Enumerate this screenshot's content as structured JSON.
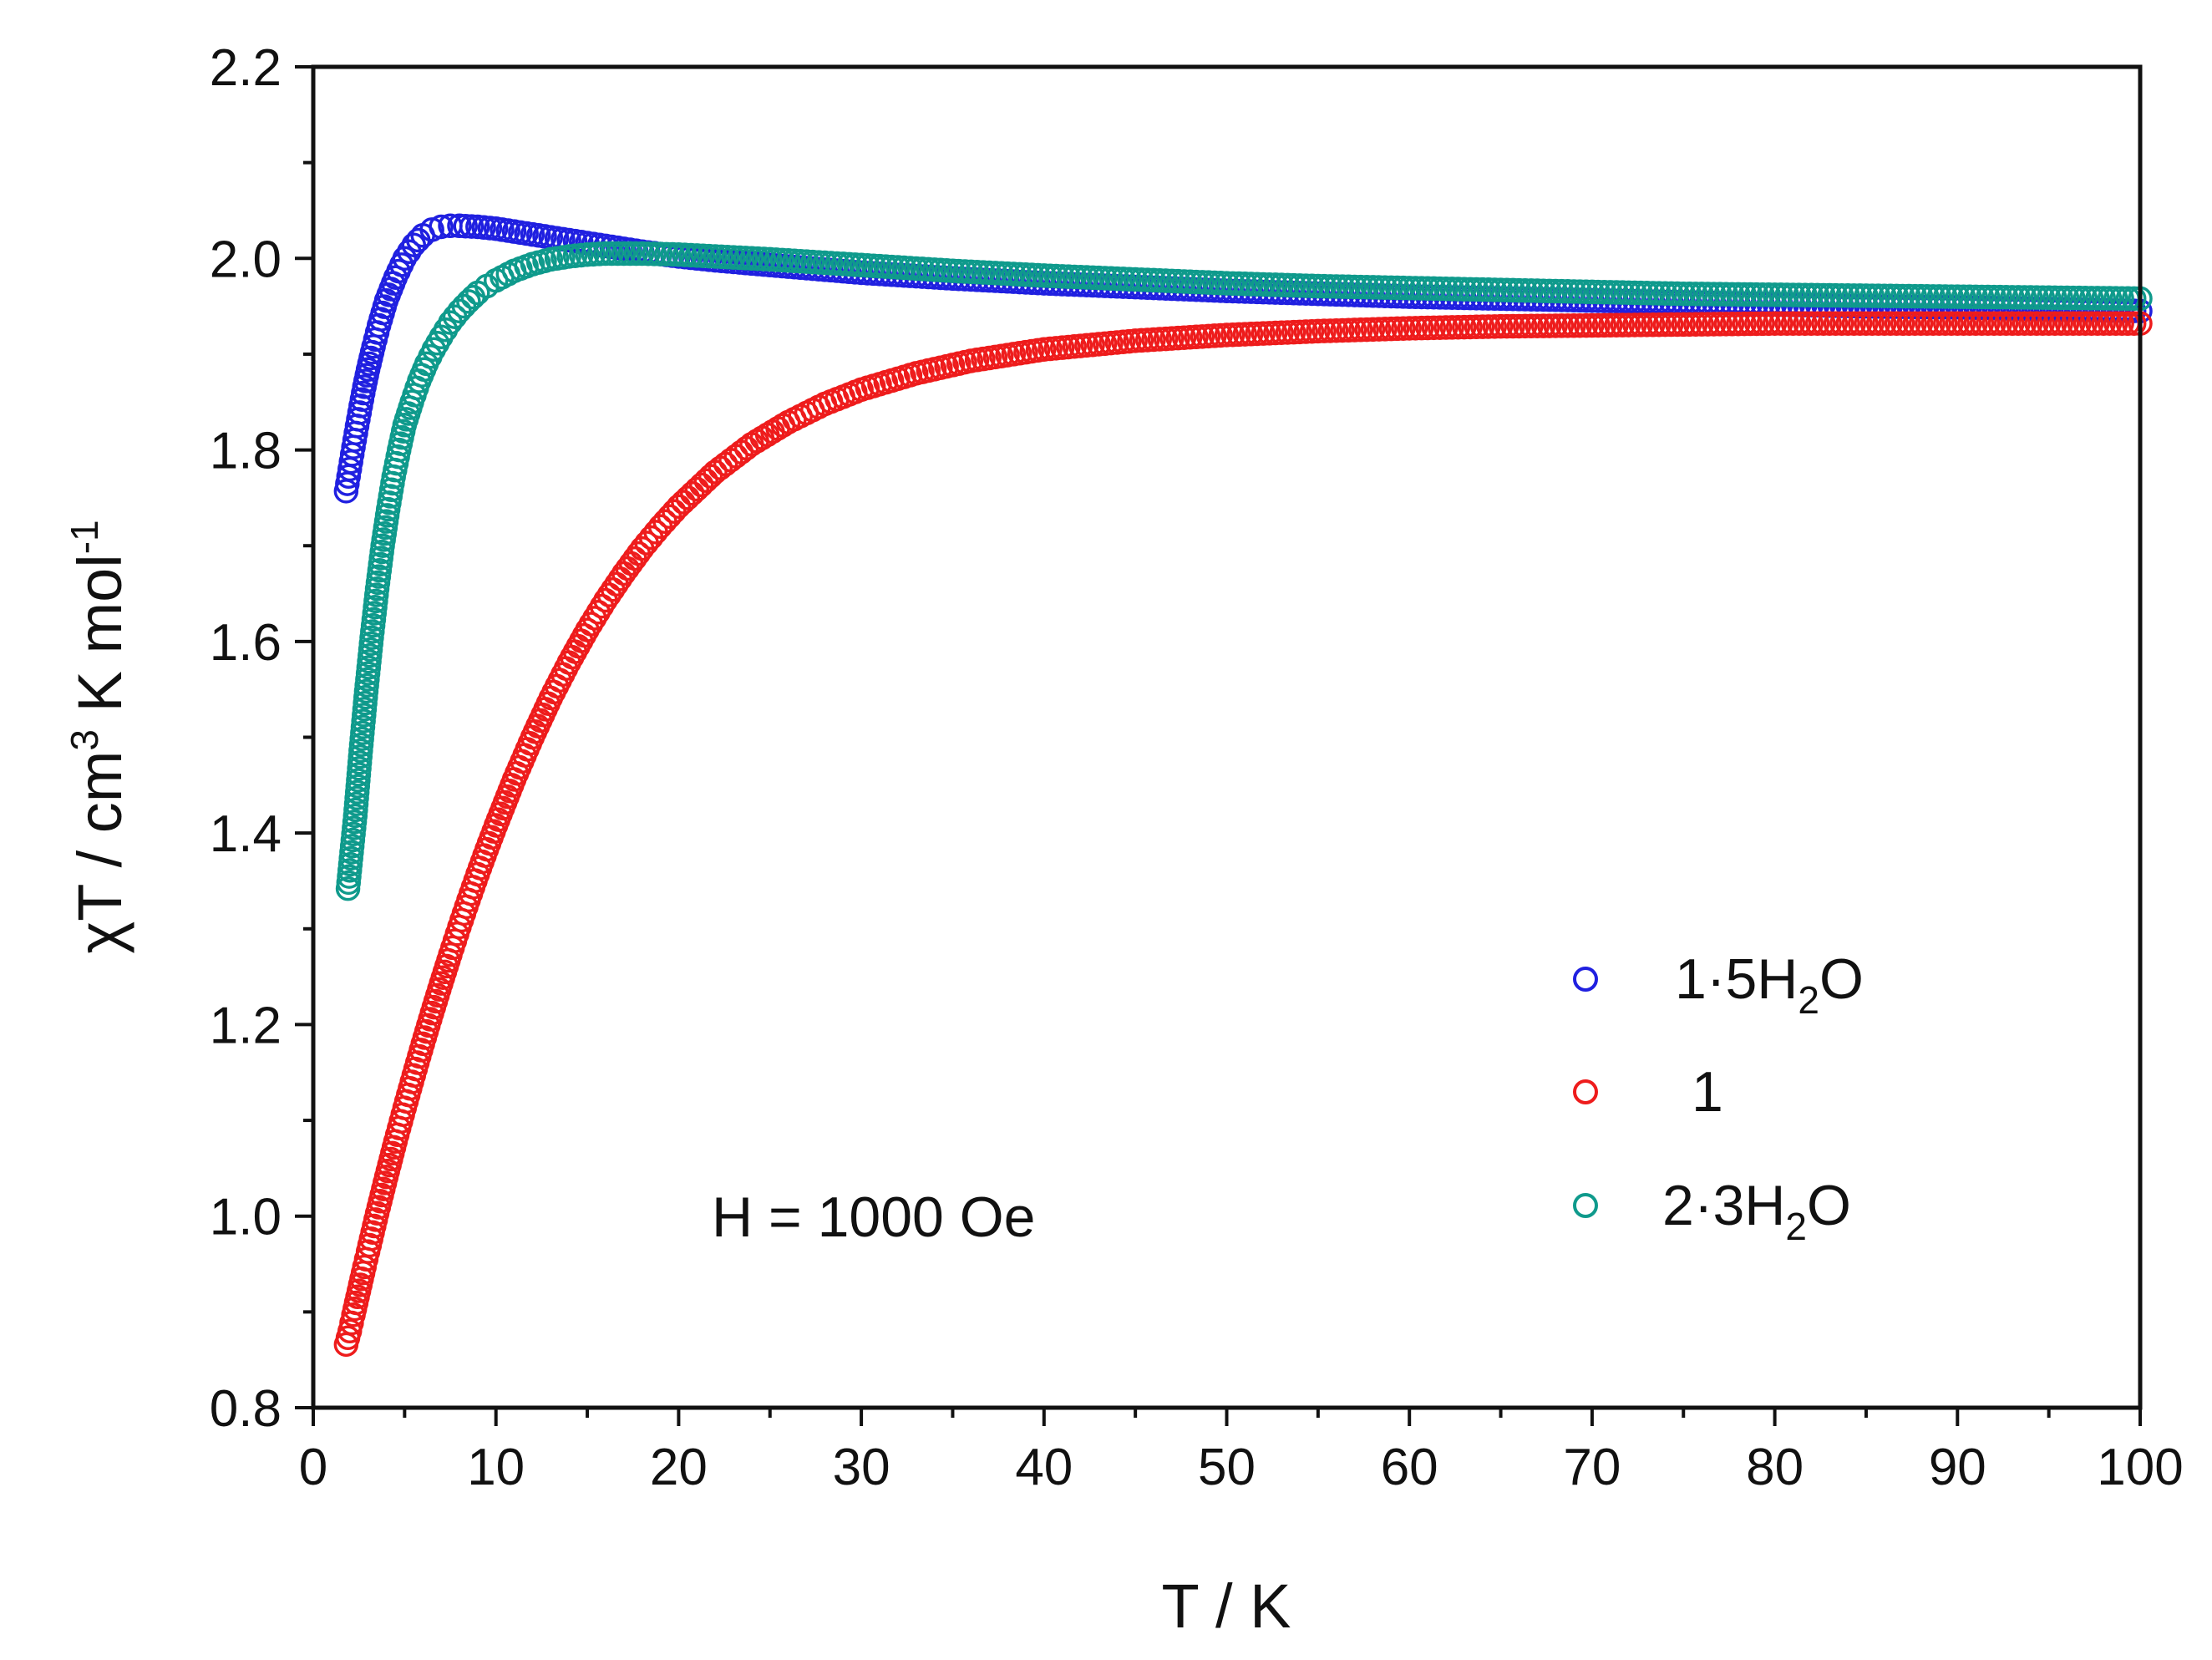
{
  "chart_data": {
    "type": "scatter",
    "title": "",
    "xlabel": "T / K",
    "ylabel": {
      "chi": "χ",
      "t": "T / cm",
      "exp3": "3",
      "k_mol": " K mol",
      "exp_neg1": "-1"
    },
    "xlim": [
      0,
      100
    ],
    "ylim": [
      0.8,
      2.2
    ],
    "x_ticks": [
      "0",
      "10",
      "20",
      "30",
      "40",
      "50",
      "60",
      "70",
      "80",
      "90",
      "100"
    ],
    "y_ticks": [
      "0.8",
      "1.0",
      "1.2",
      "1.4",
      "1.6",
      "1.8",
      "2.0",
      "2.2"
    ],
    "grid": false,
    "legend_position": "bottom-right",
    "annotation": "H = 1000 Oe",
    "series": [
      {
        "name": "1·5H2O",
        "label_parts": {
          "main": "1·5H",
          "sub": "2",
          "tail": "O"
        },
        "color": "#2020e0",
        "marker": "open-circle",
        "points": [
          [
            1.8,
            1.757
          ],
          [
            2.0,
            1.78
          ],
          [
            2.2,
            1.803
          ],
          [
            2.4,
            1.825
          ],
          [
            2.6,
            1.846
          ],
          [
            2.8,
            1.866
          ],
          [
            3.0,
            1.884
          ],
          [
            3.3,
            1.908
          ],
          [
            3.6,
            1.93
          ],
          [
            4.0,
            1.956
          ],
          [
            4.5,
            1.98
          ],
          [
            5.0,
            2.0
          ],
          [
            5.5,
            2.014
          ],
          [
            6.0,
            2.024
          ],
          [
            6.5,
            2.03
          ],
          [
            7.0,
            2.033
          ],
          [
            7.5,
            2.034
          ],
          [
            8.0,
            2.034
          ],
          [
            9.0,
            2.033
          ],
          [
            10.0,
            2.031
          ],
          [
            11.0,
            2.028
          ],
          [
            12.0,
            2.025
          ],
          [
            13.0,
            2.022
          ],
          [
            14.0,
            2.019
          ],
          [
            15.0,
            2.016
          ],
          [
            16.0,
            2.013
          ],
          [
            18.0,
            2.007
          ],
          [
            20.0,
            2.002
          ],
          [
            22.0,
            1.998
          ],
          [
            25.0,
            1.993
          ],
          [
            30.0,
            1.985
          ],
          [
            35.0,
            1.979
          ],
          [
            40.0,
            1.974
          ],
          [
            45.0,
            1.97
          ],
          [
            50.0,
            1.966
          ],
          [
            55.0,
            1.963
          ],
          [
            60.0,
            1.96
          ],
          [
            65.0,
            1.958
          ],
          [
            70.0,
            1.956
          ],
          [
            75.0,
            1.954
          ],
          [
            80.0,
            1.952
          ],
          [
            85.0,
            1.95
          ],
          [
            90.0,
            1.949
          ],
          [
            95.0,
            1.947
          ],
          [
            100.0,
            1.945
          ]
        ]
      },
      {
        "name": "1",
        "label_parts": {
          "main": "1",
          "sub": "",
          "tail": ""
        },
        "color": "#ee1c1c",
        "marker": "open-circle",
        "points": [
          [
            1.8,
            0.866
          ],
          [
            2.0,
            0.88
          ],
          [
            2.2,
            0.897
          ],
          [
            2.5,
            0.922
          ],
          [
            2.8,
            0.947
          ],
          [
            3.0,
            0.963
          ],
          [
            3.5,
            1.003
          ],
          [
            4.0,
            1.041
          ],
          [
            4.5,
            1.078
          ],
          [
            5.0,
            1.113
          ],
          [
            5.5,
            1.147
          ],
          [
            6.0,
            1.18
          ],
          [
            6.5,
            1.212
          ],
          [
            7.0,
            1.243
          ],
          [
            7.5,
            1.273
          ],
          [
            8.0,
            1.302
          ],
          [
            8.5,
            1.33
          ],
          [
            9.0,
            1.357
          ],
          [
            9.5,
            1.383
          ],
          [
            10.0,
            1.408
          ],
          [
            11.0,
            1.456
          ],
          [
            12.0,
            1.5
          ],
          [
            13.0,
            1.541
          ],
          [
            14.0,
            1.578
          ],
          [
            15.0,
            1.612
          ],
          [
            16.0,
            1.643
          ],
          [
            17.0,
            1.671
          ],
          [
            18.0,
            1.697
          ],
          [
            19.0,
            1.72
          ],
          [
            20.0,
            1.741
          ],
          [
            22.0,
            1.777
          ],
          [
            24.0,
            1.806
          ],
          [
            26.0,
            1.829
          ],
          [
            28.0,
            1.848
          ],
          [
            30.0,
            1.863
          ],
          [
            33.0,
            1.88
          ],
          [
            36.0,
            1.893
          ],
          [
            40.0,
            1.905
          ],
          [
            45.0,
            1.914
          ],
          [
            50.0,
            1.92
          ],
          [
            55.0,
            1.924
          ],
          [
            60.0,
            1.927
          ],
          [
            65.0,
            1.929
          ],
          [
            70.0,
            1.93
          ],
          [
            75.0,
            1.931
          ],
          [
            80.0,
            1.932
          ],
          [
            85.0,
            1.932
          ],
          [
            90.0,
            1.932
          ],
          [
            95.0,
            1.932
          ],
          [
            100.0,
            1.932
          ]
        ]
      },
      {
        "name": "2·3H2O",
        "label_parts": {
          "main": "2·3H",
          "sub": "2",
          "tail": "O"
        },
        "color": "#0f9a8c",
        "marker": "open-circle",
        "points": [
          [
            1.9,
            1.342
          ],
          [
            2.3,
            1.418
          ],
          [
            2.6,
            1.486
          ],
          [
            2.9,
            1.548
          ],
          [
            3.2,
            1.604
          ],
          [
            3.5,
            1.655
          ],
          [
            3.8,
            1.7
          ],
          [
            4.1,
            1.738
          ],
          [
            4.4,
            1.772
          ],
          [
            4.7,
            1.8
          ],
          [
            5.0,
            1.826
          ],
          [
            5.4,
            1.85
          ],
          [
            5.8,
            1.872
          ],
          [
            6.2,
            1.89
          ],
          [
            6.6,
            1.905
          ],
          [
            7.0,
            1.918
          ],
          [
            7.5,
            1.933
          ],
          [
            8.0,
            1.945
          ],
          [
            8.5,
            1.955
          ],
          [
            9.0,
            1.964
          ],
          [
            9.5,
            1.971
          ],
          [
            10.0,
            1.977
          ],
          [
            11.0,
            1.987
          ],
          [
            12.0,
            1.994
          ],
          [
            13.0,
            1.999
          ],
          [
            14.0,
            2.002
          ],
          [
            15.0,
            2.004
          ],
          [
            16.0,
            2.005
          ],
          [
            18.0,
            2.005
          ],
          [
            20.0,
            2.004
          ],
          [
            22.0,
            2.002
          ],
          [
            25.0,
            1.999
          ],
          [
            30.0,
            1.993
          ],
          [
            35.0,
            1.987
          ],
          [
            40.0,
            1.982
          ],
          [
            45.0,
            1.978
          ],
          [
            50.0,
            1.974
          ],
          [
            55.0,
            1.971
          ],
          [
            60.0,
            1.969
          ],
          [
            65.0,
            1.967
          ],
          [
            70.0,
            1.965
          ],
          [
            75.0,
            1.963
          ],
          [
            80.0,
            1.962
          ],
          [
            85.0,
            1.961
          ],
          [
            90.0,
            1.96
          ],
          [
            95.0,
            1.959
          ],
          [
            100.0,
            1.958
          ]
        ]
      }
    ]
  }
}
